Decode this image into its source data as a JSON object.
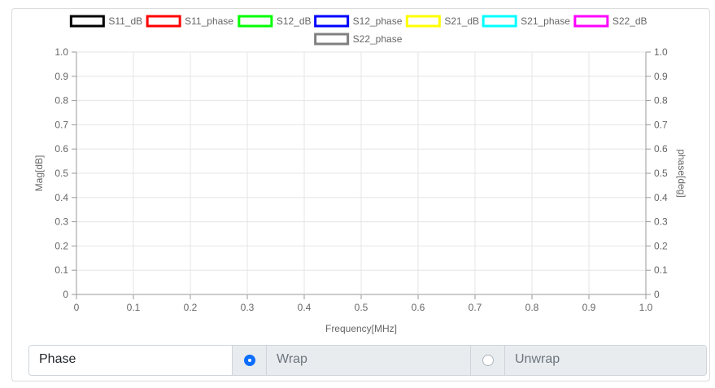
{
  "chart_data": {
    "type": "line",
    "legend": [
      {
        "name": "S11_dB",
        "color": "#000000"
      },
      {
        "name": "S11_phase",
        "color": "#ff0000"
      },
      {
        "name": "S12_dB",
        "color": "#00ff00"
      },
      {
        "name": "S12_phase",
        "color": "#0000ff"
      },
      {
        "name": "S21_dB",
        "color": "#ffff00"
      },
      {
        "name": "S21_phase",
        "color": "#00ffff"
      },
      {
        "name": "S22_dB",
        "color": "#ff00ff"
      },
      {
        "name": "S22_phase",
        "color": "#808080"
      }
    ],
    "series": [],
    "xlabel": "Frequency[MHz]",
    "ylabel": "Mag[dB]",
    "y2label": "phase[deg]",
    "xlim": [
      0,
      1
    ],
    "ylim": [
      0,
      1
    ],
    "y2lim": [
      0,
      1
    ],
    "xticks": [
      "0",
      "0.1",
      "0.2",
      "0.3",
      "0.4",
      "0.5",
      "0.6",
      "0.7",
      "0.8",
      "0.9",
      "1.0"
    ],
    "yticks": [
      "0",
      "0.1",
      "0.2",
      "0.3",
      "0.4",
      "0.5",
      "0.6",
      "0.7",
      "0.8",
      "0.9",
      "1.0"
    ],
    "grid": true,
    "legend_position": "top"
  },
  "phase_control": {
    "label": "Phase",
    "options": [
      {
        "label": "Wrap",
        "selected": true
      },
      {
        "label": "Unwrap",
        "selected": false
      }
    ]
  }
}
